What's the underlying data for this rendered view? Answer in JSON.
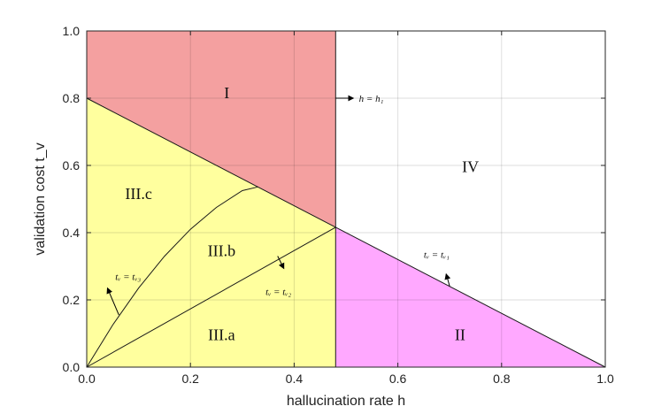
{
  "chart_data": {
    "type": "area",
    "title": "",
    "xlabel": "hallucination rate h",
    "ylabel": "validation cost t_v",
    "xlim": [
      0,
      1
    ],
    "ylim": [
      0,
      1
    ],
    "xticks": [
      "0.0",
      "0.2",
      "0.4",
      "0.6",
      "0.8",
      "1.0"
    ],
    "yticks": [
      "0.0",
      "0.2",
      "0.4",
      "0.6",
      "0.8",
      "1.0"
    ],
    "grid": true,
    "h1": 0.48,
    "boundary_tv1": {
      "x": [
        0,
        1
      ],
      "y": [
        0.8,
        0
      ]
    },
    "boundary_tv2": {
      "x": [
        0,
        0.48
      ],
      "y": [
        0,
        0.416
      ]
    },
    "boundary_tv3": {
      "x": [
        0,
        0.05,
        0.1,
        0.15,
        0.2,
        0.25,
        0.3,
        0.33
      ],
      "y": [
        0,
        0.125,
        0.235,
        0.33,
        0.41,
        0.475,
        0.525,
        0.536
      ]
    },
    "regions": [
      {
        "id": "I",
        "label": "I",
        "color": "#f4a0a0"
      },
      {
        "id": "II",
        "label": "II",
        "color": "#ffa8ff"
      },
      {
        "id": "III",
        "label": "III",
        "color": "#ffff9e"
      },
      {
        "id": "IV",
        "label": "IV",
        "color": "#ffffff"
      }
    ],
    "region_labels": [
      {
        "text": "I",
        "x": 0.27,
        "y": 0.8
      },
      {
        "text": "IV",
        "x": 0.74,
        "y": 0.58
      },
      {
        "text": "III.c",
        "x": 0.1,
        "y": 0.5
      },
      {
        "text": "III.b",
        "x": 0.26,
        "y": 0.33
      },
      {
        "text": "III.a",
        "x": 0.26,
        "y": 0.08
      },
      {
        "text": "II",
        "x": 0.72,
        "y": 0.08
      }
    ],
    "annotations": [
      {
        "text": "h = h₁",
        "x": 0.525,
        "y": 0.8
      },
      {
        "text": "tᵥ = tᵥ₁",
        "x": 0.65,
        "y": 0.335
      },
      {
        "text": "tᵥ = tᵥ₂",
        "x": 0.345,
        "y": 0.225
      },
      {
        "text": "tᵥ = tᵥ₃",
        "x": 0.055,
        "y": 0.27
      }
    ]
  }
}
